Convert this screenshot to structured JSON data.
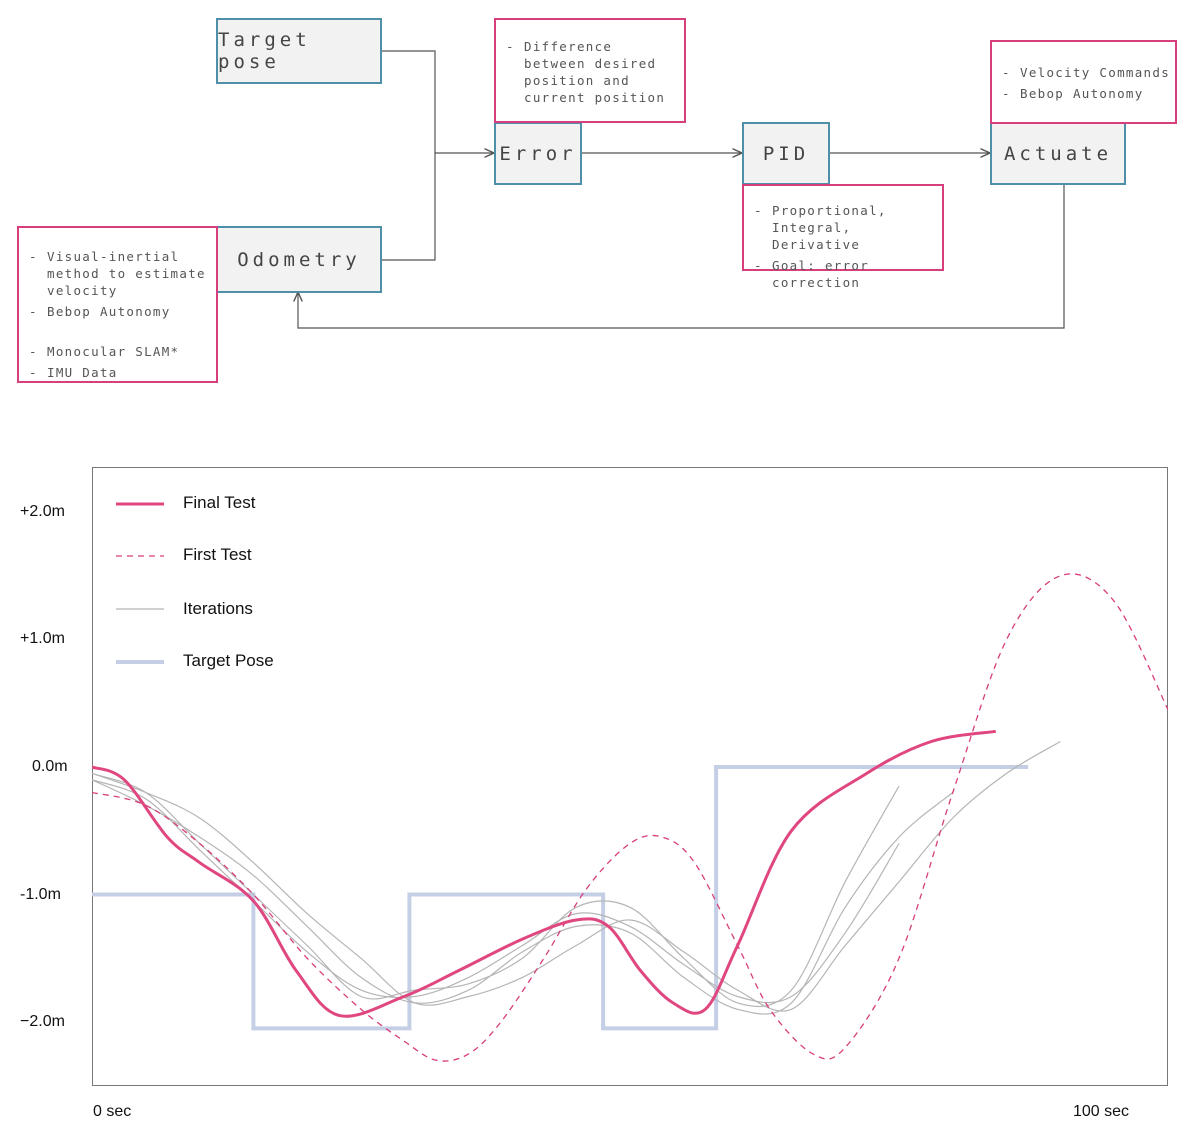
{
  "diagram": {
    "blocks": {
      "target_pose": "Target pose",
      "error": "Error",
      "pid": "PID",
      "actuate": "Actuate",
      "odometry": "Odometry"
    },
    "notes": {
      "error": [
        "Difference between desired position and current position"
      ],
      "pid": [
        "Proportional, Integral, Derivative",
        "Goal: error correction"
      ],
      "actuate": [
        "Velocity Commands",
        "Bebop Autonomy"
      ],
      "odometry": [
        "Visual-inertial method to estimate velocity",
        "Bebop Autonomy",
        "Monocular SLAM*",
        "IMU Data"
      ]
    },
    "colors": {
      "block_border": "#4f8fa8",
      "note_border": "#d63e7c",
      "block_fill": "#f2f2f2"
    }
  },
  "chart_data": {
    "type": "line",
    "x_start_label": "0 sec",
    "x_end_label": "100 sec",
    "xlim": [
      0,
      100
    ],
    "ylim": [
      -2.5,
      2.4
    ],
    "y_ticks": [
      {
        "value": 2.0,
        "label": "+2.0m"
      },
      {
        "value": 1.0,
        "label": "+1.0m"
      },
      {
        "value": 0.0,
        "label": "0.0m"
      },
      {
        "value": -1.0,
        "label": "-1.0m"
      },
      {
        "value": -2.0,
        "label": "−2.0m"
      }
    ],
    "legend": [
      {
        "name": "Final Test",
        "style": "solid",
        "color": "#e0467f"
      },
      {
        "name": "First Test",
        "style": "dashed",
        "color": "#d63e7c"
      },
      {
        "name": "Iterations",
        "style": "thin",
        "color": "#b5b5b5"
      },
      {
        "name": "Target Pose",
        "style": "thick",
        "color": "#c4cfe6"
      }
    ],
    "series": [
      {
        "name": "Target Pose",
        "color": "#c4cfe6",
        "x": [
          0,
          15,
          15,
          29.5,
          29.5,
          47.5,
          47.5,
          58,
          58,
          87
        ],
        "y": [
          -1.0,
          -1.0,
          -2.05,
          -2.05,
          -1.0,
          -1.0,
          -2.05,
          -2.05,
          0.0,
          0.0
        ]
      },
      {
        "name": "Final Test",
        "color": "#e0467f",
        "x": [
          0,
          3,
          7,
          10,
          15,
          19,
          23,
          29,
          34,
          40,
          45,
          48,
          51,
          54,
          57,
          60,
          65,
          72,
          78,
          84
        ],
        "y": [
          0.0,
          -0.1,
          -0.55,
          -0.75,
          -1.05,
          -1.6,
          -1.95,
          -1.8,
          -1.6,
          -1.35,
          -1.2,
          -1.25,
          -1.6,
          -1.85,
          -1.9,
          -1.4,
          -0.5,
          -0.05,
          0.2,
          0.28
        ]
      },
      {
        "name": "First Test",
        "color": "#d63e7c",
        "x": [
          0,
          5,
          10,
          15,
          20,
          25,
          29,
          32,
          35,
          38,
          42,
          46,
          50,
          53,
          56,
          60,
          63,
          67,
          70,
          75,
          80,
          85,
          90,
          95,
          100
        ],
        "y": [
          -0.2,
          -0.3,
          -0.6,
          -1.0,
          -1.5,
          -1.9,
          -2.15,
          -2.3,
          -2.25,
          -2.0,
          -1.5,
          -0.95,
          -0.6,
          -0.55,
          -0.75,
          -1.4,
          -1.9,
          -2.25,
          -2.2,
          -1.5,
          -0.2,
          1.0,
          1.5,
          1.3,
          0.45
        ]
      },
      {
        "name": "Iterations",
        "color": "#b5b5b5",
        "x": [
          0,
          5,
          10,
          15,
          20,
          25,
          30,
          35,
          40,
          45,
          50,
          55,
          60,
          65,
          70,
          75
        ],
        "y": [
          -0.05,
          -0.2,
          -0.6,
          -1.0,
          -1.4,
          -1.8,
          -1.75,
          -1.7,
          -1.5,
          -1.1,
          -1.1,
          -1.5,
          -1.85,
          -1.75,
          -0.9,
          -0.15
        ]
      },
      {
        "name": "Iterations",
        "color": "#b5b5b5",
        "x": [
          0,
          5,
          10,
          15,
          20,
          25,
          30,
          35,
          40,
          45,
          50,
          55,
          60,
          65,
          70,
          75,
          80
        ],
        "y": [
          -0.1,
          -0.3,
          -0.55,
          -0.85,
          -1.25,
          -1.65,
          -1.85,
          -1.75,
          -1.45,
          -1.25,
          -1.3,
          -1.65,
          -1.9,
          -1.85,
          -1.1,
          -0.55,
          -0.2
        ]
      },
      {
        "name": "Iterations",
        "color": "#b5b5b5",
        "x": [
          0,
          5,
          10,
          15,
          20,
          25,
          30,
          35,
          40,
          45,
          50,
          55,
          60,
          65,
          70,
          75,
          80,
          85,
          90
        ],
        "y": [
          -0.05,
          -0.2,
          -0.4,
          -0.75,
          -1.15,
          -1.5,
          -1.85,
          -1.8,
          -1.65,
          -1.4,
          -1.2,
          -1.45,
          -1.75,
          -1.9,
          -1.4,
          -0.9,
          -0.4,
          -0.05,
          0.2
        ]
      },
      {
        "name": "Iterations",
        "color": "#b5b5b5",
        "x": [
          0,
          5,
          10,
          15,
          20,
          25,
          30,
          35,
          40,
          45,
          50,
          55,
          60,
          65,
          70,
          75
        ],
        "y": [
          -0.1,
          -0.25,
          -0.65,
          -1.05,
          -1.45,
          -1.75,
          -1.8,
          -1.65,
          -1.4,
          -1.15,
          -1.25,
          -1.55,
          -1.8,
          -1.8,
          -1.3,
          -0.6
        ]
      }
    ]
  }
}
